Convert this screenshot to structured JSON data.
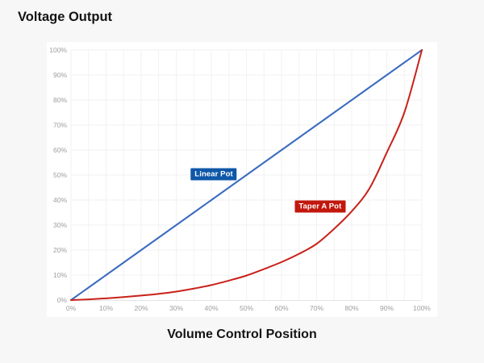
{
  "chart_data": {
    "type": "line",
    "title": "Voltage Output",
    "xlabel": "Volume Control Position",
    "ylabel": "",
    "x": [
      0,
      5,
      10,
      15,
      20,
      25,
      30,
      35,
      40,
      45,
      50,
      55,
      60,
      65,
      70,
      75,
      80,
      85,
      90,
      95,
      100
    ],
    "series": [
      {
        "name": "Linear Pot",
        "color": "#3a6bc0",
        "values": [
          0,
          5,
          10,
          15,
          20,
          25,
          30,
          35,
          40,
          45,
          50,
          55,
          60,
          65,
          70,
          75,
          80,
          85,
          90,
          95,
          100
        ]
      },
      {
        "name": "Taper A Pot",
        "color": "#c9211a",
        "values": [
          0,
          0.3,
          0.7,
          1.2,
          1.8,
          2.5,
          3.4,
          4.6,
          6,
          7.8,
          9.8,
          12.4,
          15.2,
          18.5,
          22.5,
          28.5,
          35.5,
          44.5,
          59,
          75,
          100
        ]
      }
    ],
    "xlim": [
      0,
      100
    ],
    "ylim": [
      0,
      100
    ],
    "x_tick_labels": [
      "0%",
      "10%",
      "20%",
      "30%",
      "40%",
      "50%",
      "60%",
      "70%",
      "80%",
      "90%",
      "100%"
    ],
    "y_tick_labels": [
      "0%",
      "10%",
      "20%",
      "30%",
      "40%",
      "50%",
      "60%",
      "70%",
      "80%",
      "90%",
      "100%"
    ],
    "grid": true,
    "legend_position": "inline-annotations",
    "annotations": [
      {
        "text": "Linear Pot",
        "bg": "#0f57a8",
        "x": 40.7,
        "y": 50.3
      },
      {
        "text": "Taper A Pot",
        "bg": "#c2170c",
        "x": 71.0,
        "y": 37.4
      }
    ],
    "colors": {
      "grid": "#f2f2f2",
      "axis": "#e4e4e4",
      "tick_text": "#9e9e9e"
    },
    "layout": {
      "x_grid_step": 5,
      "y_grid_step": 10,
      "x_tick_step": 10,
      "y_tick_step": 10
    }
  }
}
